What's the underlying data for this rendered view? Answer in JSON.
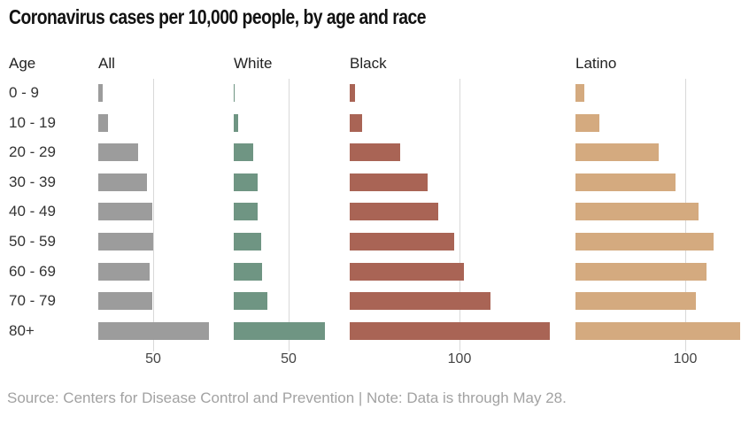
{
  "title": "Coronavirus cases per 10,000 people, by age and race",
  "source_note": "Source: Centers for Disease Control and Prevention | Note: Data is through May 28.",
  "colors": {
    "all_bars": "#9c9c9c",
    "white_bars": "#6f9583",
    "black_bars": "#a96455",
    "latino_bars": "#d4aa7f",
    "gridline": "#d9d9d9",
    "title_text": "#121212",
    "source_text": "#a2a2a2"
  },
  "chart_data": {
    "type": "bar",
    "orientation": "horizontal",
    "title": "Coronavirus cases per 10,000 people, by age and race",
    "age_header": "Age",
    "categories": [
      "0 - 9",
      "10 - 19",
      "20 - 29",
      "30 - 39",
      "40 - 49",
      "50 - 59",
      "60 - 69",
      "70 - 79",
      "80+"
    ],
    "grid": true,
    "legend_position": "column-headers",
    "series": [
      {
        "name": "All",
        "color": "#9c9c9c",
        "axis_tick": 50,
        "xlim": [
          0,
          115
        ],
        "values": [
          4,
          9,
          36,
          44,
          49,
          50,
          47,
          49,
          101
        ]
      },
      {
        "name": "White",
        "color": "#6f9583",
        "axis_tick": 50,
        "xlim": [
          0,
          100
        ],
        "values": [
          1,
          4,
          18,
          22,
          22,
          25,
          26,
          31,
          83
        ]
      },
      {
        "name": "Black",
        "color": "#a96455",
        "axis_tick": 100,
        "xlim": [
          0,
          200
        ],
        "values": [
          5,
          11,
          46,
          71,
          81,
          95,
          104,
          128,
          182
        ]
      },
      {
        "name": "Latino",
        "color": "#d4aa7f",
        "axis_tick": 100,
        "xlim": [
          0,
          155
        ],
        "values": [
          8,
          22,
          76,
          91,
          112,
          126,
          119,
          110,
          150
        ]
      }
    ]
  }
}
